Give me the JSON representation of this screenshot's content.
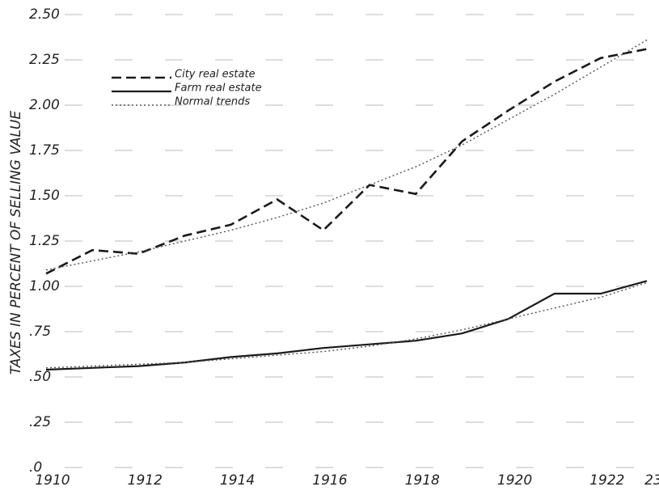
{
  "chart_data": {
    "type": "line",
    "y_label": "TAXES IN PERCENT OF SELLING VALUE",
    "categories": [
      "1910",
      null,
      "1912",
      null,
      "1914",
      null,
      "1916",
      null,
      "1918",
      null,
      "1920",
      null,
      "1922",
      "23"
    ],
    "ylim": [
      0,
      2.5
    ],
    "yticks": [
      {
        "value": 0,
        "label": ".0"
      },
      {
        "value": 0.25,
        "label": ".25"
      },
      {
        "value": 0.5,
        "label": ".50"
      },
      {
        "value": 0.75,
        "label": ".75"
      },
      {
        "value": 1.0,
        "label": "1.00"
      },
      {
        "value": 1.25,
        "label": "1.25"
      },
      {
        "value": 1.5,
        "label": "1.50"
      },
      {
        "value": 1.75,
        "label": "1.75"
      },
      {
        "value": 2.0,
        "label": "2.00"
      },
      {
        "value": 2.25,
        "label": "2.25"
      },
      {
        "value": 2.5,
        "label": "2.50"
      }
    ],
    "grid": true,
    "series": [
      {
        "name": "City real estate",
        "color": "#1a1a1a",
        "style": "dashed",
        "values": [
          1.07,
          1.2,
          1.18,
          1.28,
          1.34,
          1.48,
          1.31,
          1.56,
          1.51,
          1.8,
          1.97,
          2.13,
          2.26,
          2.31
        ]
      },
      {
        "name": "Farm real estate",
        "color": "#1a1a1a",
        "style": "solid",
        "values": [
          0.54,
          0.55,
          0.56,
          0.58,
          0.61,
          0.63,
          0.66,
          0.68,
          0.7,
          0.74,
          0.82,
          0.96,
          0.96,
          1.03
        ]
      },
      {
        "name": "Normal trends",
        "color": "#555555",
        "style": "dotted",
        "values": [
          1.09,
          1.14,
          1.19,
          1.25,
          1.31,
          1.38,
          1.46,
          1.56,
          1.66,
          1.78,
          1.92,
          2.06,
          2.21,
          2.36
        ]
      },
      {
        "color": "#555555",
        "style": "dotted",
        "values": [
          0.55,
          0.56,
          0.57,
          0.58,
          0.6,
          0.62,
          0.64,
          0.67,
          0.71,
          0.76,
          0.82,
          0.88,
          0.94,
          1.02
        ]
      }
    ]
  }
}
